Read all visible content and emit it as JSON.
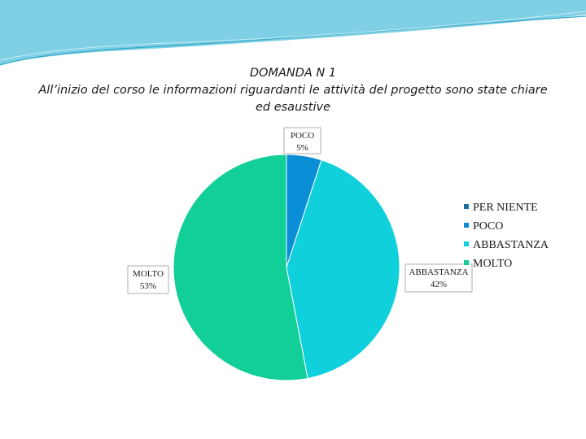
{
  "slide": {
    "title_line1": "DOMANDA N 1",
    "title_line2": "All’inizio del corso le informazioni riguardanti le attività del progetto sono state chiare",
    "title_line3": "ed esaustive"
  },
  "colors": {
    "header_wave_light": "#c9ecf4",
    "header_wave_mid": "#7fd0e4",
    "header_wave_dark": "#2fa9c9"
  },
  "chart_data": {
    "type": "pie",
    "title": "All’inizio del corso le informazioni riguardanti le attività del progetto sono state chiare ed esaustive",
    "legend_position": "right",
    "series": [
      {
        "name": "PER NIENTE",
        "value": 0,
        "label": "",
        "color": "#1f6f9e"
      },
      {
        "name": "POCO",
        "value": 5,
        "label": "5%",
        "color": "#0a8fd6"
      },
      {
        "name": "ABBASTANZA",
        "value": 42,
        "label": "42%",
        "color": "#10d0dc"
      },
      {
        "name": "MOLTO",
        "value": 53,
        "label": "53%",
        "color": "#12cf98"
      }
    ],
    "data_labels": [
      {
        "category": "POCO",
        "percent": "5%"
      },
      {
        "category": "ABBASTANZA",
        "percent": "42%"
      },
      {
        "category": "MOLTO",
        "percent": "53%"
      }
    ]
  }
}
